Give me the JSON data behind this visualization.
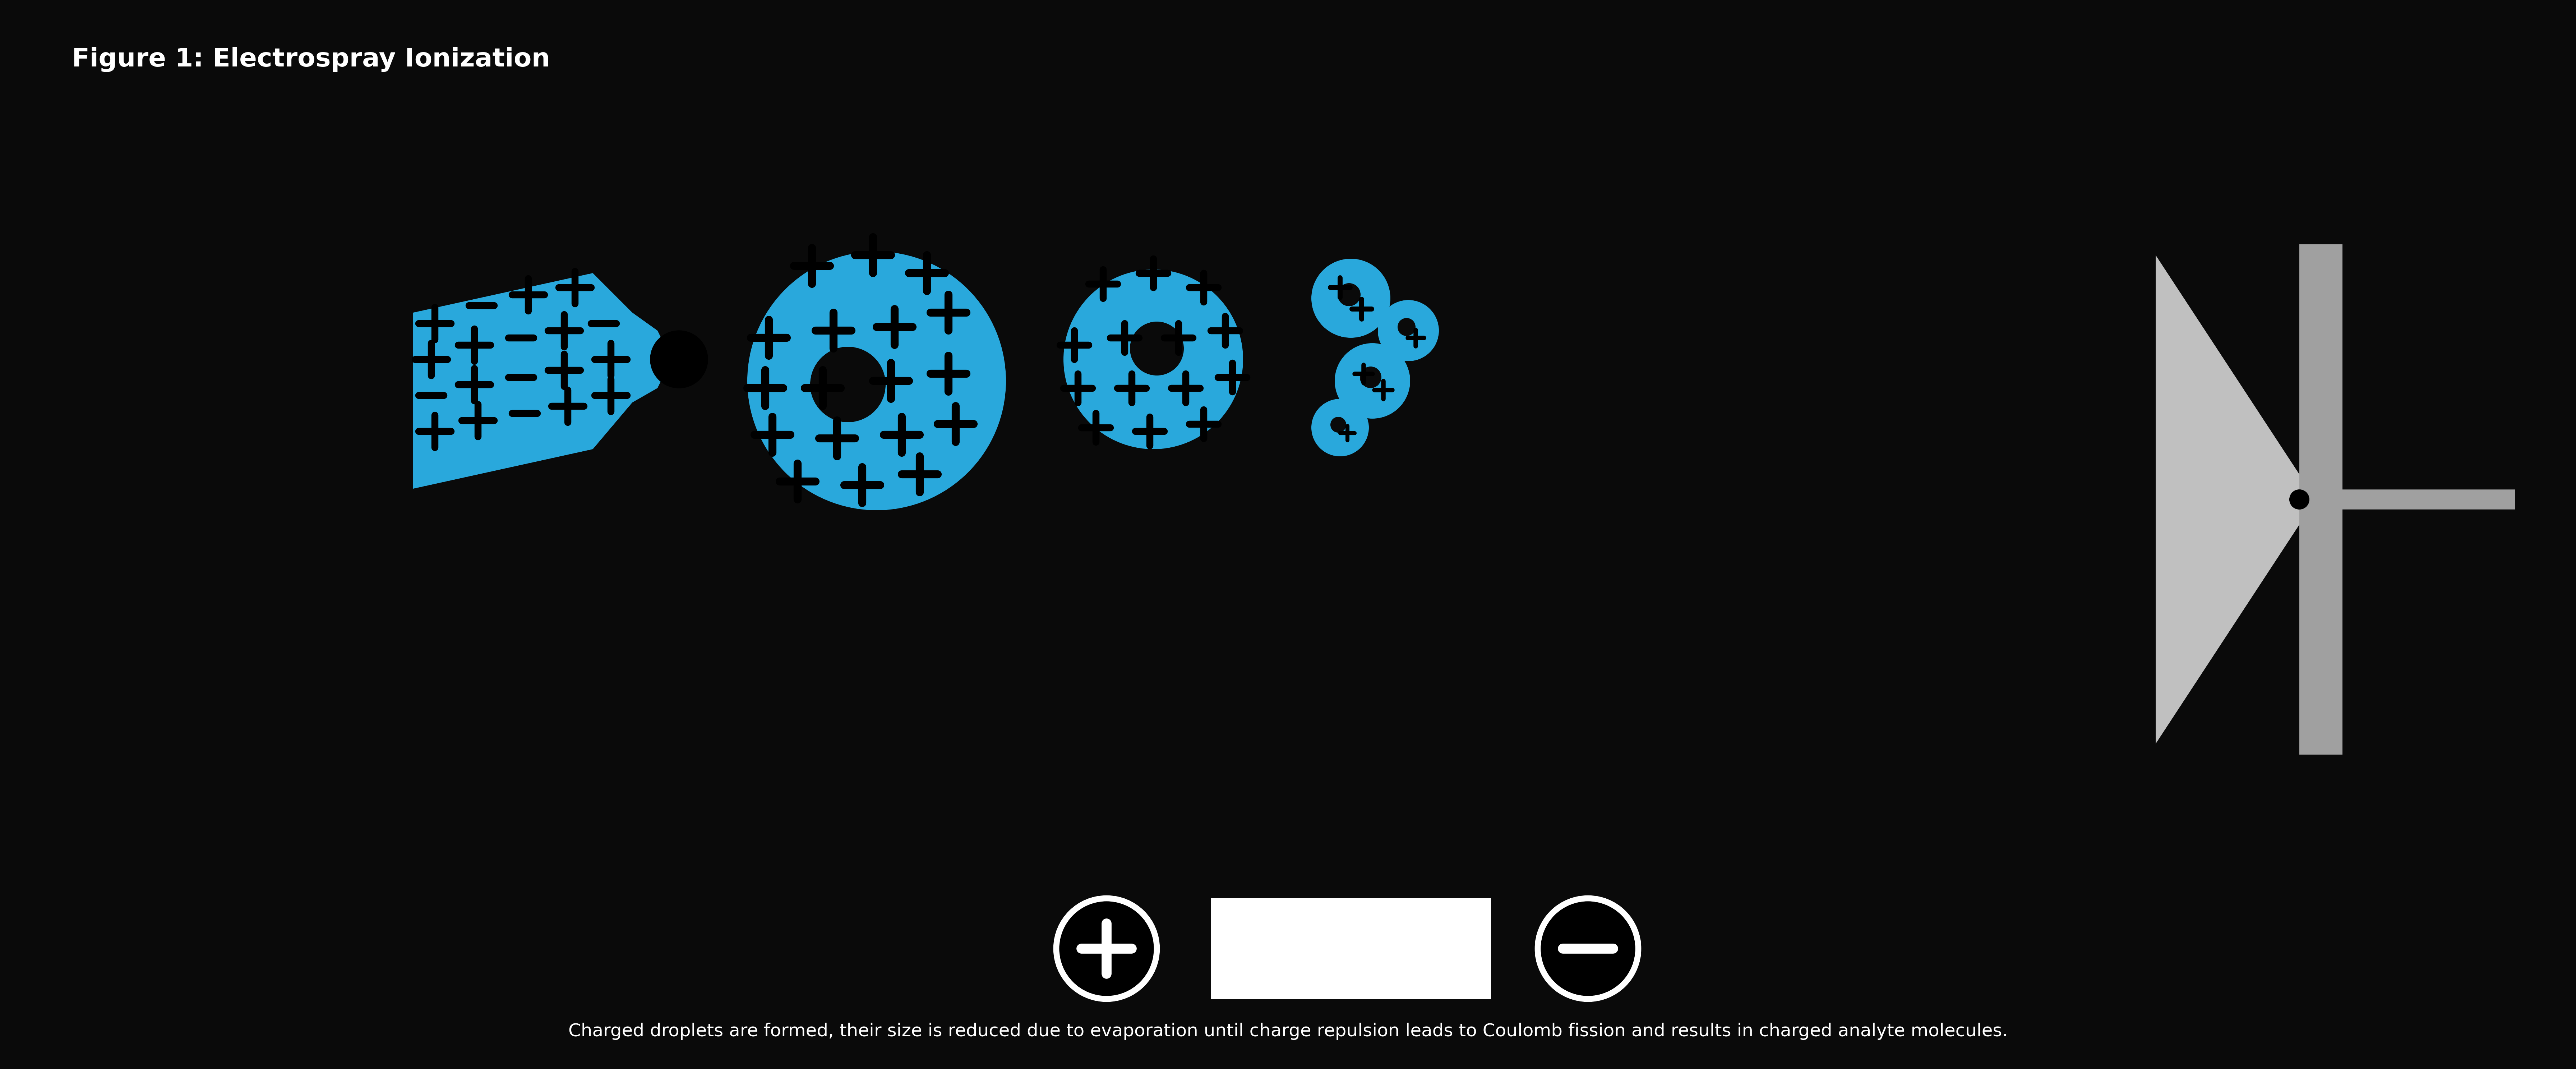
{
  "bg_color": "#0a0a0a",
  "blue": "#29a8dc",
  "black": "#000000",
  "white": "#ffffff",
  "gray_light": "#c0c0c0",
  "gray_med": "#a0a0a0",
  "title": "Figure 1: Electrospray Ionization",
  "subtitle": "Charged droplets are formed, their size is reduced due to evaporation until charge repulsion leads to Coulomb fission and results in charged analyte molecules.",
  "title_color": "#ffffff",
  "title_fontsize": 52,
  "subtitle_fontsize": 36,
  "figsize": [
    71.71,
    29.75
  ],
  "dpi": 100
}
